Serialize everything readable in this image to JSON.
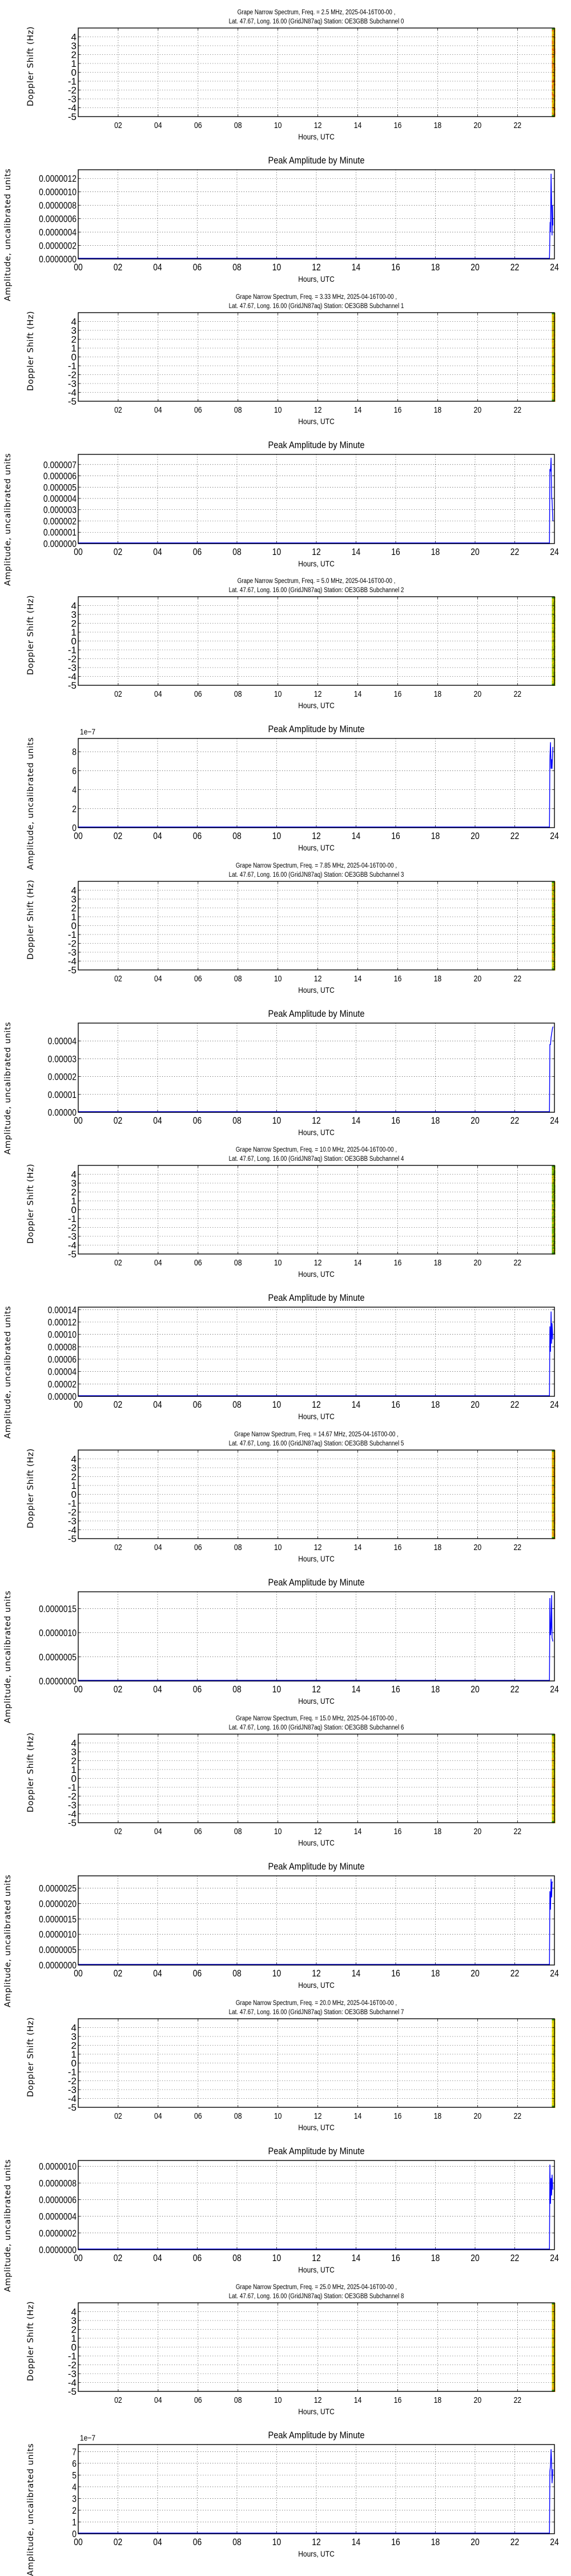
{
  "page": {
    "common": {
      "spectrum_title_prefix": "Grape Narrow Spectrum, Freq. = ",
      "date_suffix": ", 2025-04-16T00-00 ,",
      "location_prefix": "Lat.  47.67, Long.  16.00 (GridJN87aq) Station: OE3GBB Subchannel ",
      "doppler_ylabel": "Doppler Shift (Hz)",
      "amp_title": "Peak Amplitude by Minute",
      "amp_ylabel": "Amplitude, uncalibrated units",
      "xlabel": "Hours, UTC",
      "spectrum_xticks": [
        "02",
        "04",
        "06",
        "08",
        "10",
        "12",
        "14",
        "16",
        "18",
        "20",
        "22"
      ],
      "amp_xticks": [
        "00",
        "02",
        "04",
        "06",
        "08",
        "10",
        "12",
        "14",
        "16",
        "18",
        "20",
        "22",
        "24"
      ],
      "doppler_yticks": [
        "4",
        "3",
        "2",
        "1",
        "0",
        "-1",
        "-2",
        "-3",
        "-4",
        "-5"
      ],
      "line_color": "#0000ff",
      "grid_color": "#000000"
    },
    "blocks": [
      {
        "subchannel": "0",
        "freq": "2.5 MHz",
        "spectrum_title_line1": "Grape Narrow Spectrum, Freq. = 2.5 MHz, 2025-04-16T00-00 ,",
        "spectrum_title_line2": "Lat.  47.67, Long.  16.00 (GridJN87aq) Station: OE3GBB Subchannel 0",
        "band_palette": [
          "#e8c400",
          "#f0a000",
          "#e86000",
          "#d8d000"
        ],
        "amp_offset_text": "",
        "amp_yticks": [
          "0.0000012",
          "0.0000010",
          "0.0000008",
          "0.0000006",
          "0.0000004",
          "0.0000002",
          "0.0000000"
        ]
      },
      {
        "subchannel": "1",
        "freq": "3.33 MHz",
        "spectrum_title_line1": "Grape Narrow Spectrum, Freq. = 3.33 MHz, 2025-04-16T00-00 ,",
        "spectrum_title_line2": "Lat.  47.67, Long.  16.00 (GridJN87aq) Station: OE3GBB Subchannel 1",
        "band_palette": [
          "#c8d000",
          "#e0a000",
          "#b8c800",
          "#e8c800"
        ],
        "amp_offset_text": "",
        "amp_yticks": [
          "0.000007",
          "0.000006",
          "0.000005",
          "0.000004",
          "0.000003",
          "0.000002",
          "0.000001",
          "0.000000"
        ]
      },
      {
        "subchannel": "2",
        "freq": "5.0 MHz",
        "spectrum_title_line1": "Grape Narrow Spectrum, Freq. = 5.0 MHz, 2025-04-16T00-00 ,",
        "spectrum_title_line2": "Lat.  47.67, Long.  16.00 (GridJN87aq) Station: OE3GBB Subchannel 2",
        "band_palette": [
          "#a8c800",
          "#c8d400",
          "#e0d000",
          "#90b800"
        ],
        "amp_offset_text": "1e−7",
        "amp_yticks": [
          "8",
          "6",
          "4",
          "2",
          "0"
        ]
      },
      {
        "subchannel": "3",
        "freq": "7.85 MHz",
        "spectrum_title_line1": "Grape Narrow Spectrum, Freq. = 7.85 MHz, 2025-04-16T00-00 ,",
        "spectrum_title_line2": "Lat.  47.67, Long.  16.00 (GridJN87aq) Station: OE3GBB Subchannel 3",
        "band_palette": [
          "#88b800",
          "#a8c800",
          "#e8a000",
          "#d8d000"
        ],
        "amp_offset_text": "",
        "amp_yticks": [
          "0.00004",
          "0.00003",
          "0.00002",
          "0.00001",
          "0.00000"
        ]
      },
      {
        "subchannel": "4",
        "freq": "10.0 MHz",
        "spectrum_title_line1": "Grape Narrow Spectrum, Freq. = 10.0 MHz, 2025-04-16T00-00 ,",
        "spectrum_title_line2": "Lat.  47.67, Long.  16.00 (GridJN87aq) Station: OE3GBB Subchannel 4",
        "band_palette": [
          "#60a800",
          "#78b400",
          "#90c000",
          "#e0c000"
        ],
        "amp_offset_text": "",
        "amp_yticks": [
          "0.00014",
          "0.00012",
          "0.00010",
          "0.00008",
          "0.00006",
          "0.00004",
          "0.00002",
          "0.00000"
        ]
      },
      {
        "subchannel": "5",
        "freq": "14.67 MHz",
        "spectrum_title_line1": "Grape Narrow Spectrum, Freq. = 14.67 MHz, 2025-04-16T00-00 ,",
        "spectrum_title_line2": "Lat.  47.67, Long.  16.00 (GridJN87aq) Station: OE3GBB Subchannel 5",
        "band_palette": [
          "#e8c800",
          "#f0b000",
          "#c8d000",
          "#e89000"
        ],
        "amp_offset_text": "",
        "amp_yticks": [
          "0.0000015",
          "0.0000010",
          "0.0000005",
          "0.0000000"
        ]
      },
      {
        "subchannel": "6",
        "freq": "15.0 MHz",
        "spectrum_title_line1": "Grape Narrow Spectrum, Freq. = 15.0 MHz, 2025-04-16T00-00 ,",
        "spectrum_title_line2": "Lat.  47.67, Long.  16.00 (GridJN87aq) Station: OE3GBB Subchannel 6",
        "band_palette": [
          "#d0d400",
          "#b8c800",
          "#e8d000",
          "#e8a000"
        ],
        "amp_offset_text": "",
        "amp_yticks": [
          "0.0000025",
          "0.0000020",
          "0.0000015",
          "0.0000010",
          "0.0000005",
          "0.0000000"
        ]
      },
      {
        "subchannel": "7",
        "freq": "20.0 MHz",
        "spectrum_title_line1": "Grape Narrow Spectrum, Freq. = 20.0 MHz, 2025-04-16T00-00 ,",
        "spectrum_title_line2": "Lat.  47.67, Long.  16.00 (GridJN87aq) Station: OE3GBB Subchannel 7",
        "band_palette": [
          "#e8d800",
          "#d8d000",
          "#c8c800",
          "#f0e000"
        ],
        "amp_offset_text": "",
        "amp_yticks": [
          "0.0000010",
          "0.0000008",
          "0.0000006",
          "0.0000004",
          "0.0000002",
          "0.0000000"
        ]
      },
      {
        "subchannel": "8",
        "freq": "25.0 MHz",
        "spectrum_title_line1": "Grape Narrow Spectrum, Freq. = 25.0 MHz, 2025-04-16T00-00 ,",
        "spectrum_title_line2": "Lat.  47.67, Long.  16.00 (GridJN87aq) Station: OE3GBB Subchannel 8",
        "band_palette": [
          "#e8c800",
          "#d8d000",
          "#f0a800",
          "#c0c800"
        ],
        "amp_offset_text": "1e−7",
        "amp_yticks": [
          "7",
          "6",
          "5",
          "4",
          "3",
          "2",
          "1",
          "0"
        ]
      }
    ]
  },
  "chart_data": [
    {
      "type": "heatmap",
      "title": "Grape Narrow Spectrum, Freq. = 2.5 MHz, 2025-04-16T00-00 , Lat.  47.67, Long.  16.00 (GridJN87aq) Station: OE3GBB Subchannel 0",
      "xlabel": "Hours, UTC",
      "ylabel": "Doppler Shift (Hz)",
      "xlim": [
        0,
        23.85
      ],
      "ylim": [
        -5,
        5
      ],
      "xticks": [
        "02",
        "04",
        "06",
        "08",
        "10",
        "12",
        "14",
        "16",
        "18",
        "20",
        "22"
      ],
      "yticks": [
        4,
        3,
        2,
        1,
        0,
        -1,
        -2,
        -3,
        -4,
        -5
      ],
      "grid": true,
      "note": "data only in last ~10 minutes (23.75-23.85 h), yellow/orange/red noise",
      "data_x_range": [
        23.75,
        23.85
      ]
    },
    {
      "type": "line",
      "title": "Peak Amplitude by Minute",
      "subchannel": 0,
      "xlabel": "Hours, UTC",
      "ylabel": "Amplitude, uncalibrated units",
      "xlim": [
        0,
        24
      ],
      "ylim": [
        0,
        1.33e-06
      ],
      "grid": true,
      "x": [
        0,
        23.75,
        23.78,
        23.8,
        23.83,
        23.86,
        23.88,
        23.9,
        23.92
      ],
      "values": [
        0,
        0,
        5.5e-07,
        4e-07,
        1.27e-06,
        8e-07,
        3.5e-07,
        8e-07,
        5e-07
      ]
    },
    {
      "type": "heatmap",
      "title": "Grape Narrow Spectrum, Freq. = 3.33 MHz, 2025-04-16T00-00 , Lat.  47.67, Long.  16.00 (GridJN87aq) Station: OE3GBB Subchannel 1",
      "xlabel": "Hours, UTC",
      "ylabel": "Doppler Shift (Hz)",
      "xlim": [
        0,
        23.85
      ],
      "ylim": [
        -5,
        5
      ],
      "grid": true,
      "data_x_range": [
        23.75,
        23.85
      ]
    },
    {
      "type": "line",
      "title": "Peak Amplitude by Minute",
      "subchannel": 1,
      "xlabel": "Hours, UTC",
      "ylabel": "Amplitude, uncalibrated units",
      "xlim": [
        0,
        24
      ],
      "ylim": [
        0,
        7.9e-06
      ],
      "grid": true,
      "x": [
        0,
        23.75,
        23.77,
        23.8,
        23.83,
        23.86,
        23.88,
        23.92
      ],
      "values": [
        0,
        0,
        6.6e-06,
        6.4e-06,
        7.6e-06,
        4e-06,
        3.9e-06,
        2e-06
      ]
    },
    {
      "type": "heatmap",
      "title": "Grape Narrow Spectrum, Freq. = 5.0 MHz, 2025-04-16T00-00 , Lat.  47.67, Long.  16.00 (GridJN87aq) Station: OE3GBB Subchannel 2",
      "xlabel": "Hours, UTC",
      "ylabel": "Doppler Shift (Hz)",
      "xlim": [
        0,
        23.85
      ],
      "ylim": [
        -5,
        5
      ],
      "grid": true,
      "data_x_range": [
        23.75,
        23.85
      ]
    },
    {
      "type": "line",
      "title": "Peak Amplitude by Minute",
      "subchannel": 2,
      "xlabel": "Hours, UTC",
      "ylabel": "Amplitude, uncalibrated units",
      "y_offset_label": "1e-7",
      "xlim": [
        0,
        24
      ],
      "ylim": [
        0,
        9.4e-07
      ],
      "grid": true,
      "x": [
        0,
        23.75,
        23.77,
        23.8,
        23.83,
        23.86,
        23.88,
        23.92
      ],
      "values": [
        0,
        0,
        7.2e-07,
        9e-07,
        6.2e-07,
        7.2e-07,
        6.2e-07,
        8.5e-07
      ]
    },
    {
      "type": "heatmap",
      "title": "Grape Narrow Spectrum, Freq. = 7.85 MHz, 2025-04-16T00-00 , Lat.  47.67, Long.  16.00 (GridJN87aq) Station: OE3GBB Subchannel 3",
      "xlabel": "Hours, UTC",
      "ylabel": "Doppler Shift (Hz)",
      "xlim": [
        0,
        23.85
      ],
      "ylim": [
        -5,
        5
      ],
      "grid": true,
      "data_x_range": [
        23.75,
        23.85
      ]
    },
    {
      "type": "line",
      "title": "Peak Amplitude by Minute",
      "subchannel": 3,
      "xlabel": "Hours, UTC",
      "ylabel": "Amplitude, uncalibrated units",
      "xlim": [
        0,
        24
      ],
      "ylim": [
        0,
        5e-05
      ],
      "grid": true,
      "x": [
        0,
        23.75,
        23.77,
        23.8,
        23.83,
        23.86,
        23.9,
        23.93
      ],
      "values": [
        0,
        0,
        3.8e-05,
        3.8e-05,
        4.2e-05,
        4.4e-05,
        4.7e-05,
        4.8e-05
      ]
    },
    {
      "type": "heatmap",
      "title": "Grape Narrow Spectrum, Freq. = 10.0 MHz, 2025-04-16T00-00 , Lat.  47.67, Long.  16.00 (GridJN87aq) Station: OE3GBB Subchannel 4",
      "xlabel": "Hours, UTC",
      "ylabel": "Doppler Shift (Hz)",
      "xlim": [
        0,
        23.85
      ],
      "ylim": [
        -5,
        5
      ],
      "grid": true,
      "data_x_range": [
        23.75,
        23.85
      ]
    },
    {
      "type": "line",
      "title": "Peak Amplitude by Minute",
      "subchannel": 4,
      "xlabel": "Hours, UTC",
      "ylabel": "Amplitude, uncalibrated units",
      "xlim": [
        0,
        24
      ],
      "ylim": [
        0,
        0.000144
      ],
      "grid": true,
      "x": [
        0,
        23.75,
        23.77,
        23.8,
        23.83,
        23.86,
        23.88,
        23.92
      ],
      "values": [
        0,
        0,
        0.000113,
        7.2e-05,
        0.000137,
        8.5e-05,
        0.000118,
        9.2e-05
      ]
    },
    {
      "type": "heatmap",
      "title": "Grape Narrow Spectrum, Freq. = 14.67 MHz, 2025-04-16T00-00 , Lat.  47.67, Long.  16.00 (GridJN87aq) Station: OE3GBB Subchannel 5",
      "xlabel": "Hours, UTC",
      "ylabel": "Doppler Shift (Hz)",
      "xlim": [
        0,
        23.85
      ],
      "ylim": [
        -5,
        5
      ],
      "grid": true,
      "data_x_range": [
        23.75,
        23.85
      ]
    },
    {
      "type": "line",
      "title": "Peak Amplitude by Minute",
      "subchannel": 5,
      "xlabel": "Hours, UTC",
      "ylabel": "Amplitude, uncalibrated units",
      "xlim": [
        0,
        24
      ],
      "ylim": [
        0,
        1.85e-06
      ],
      "grid": true,
      "x": [
        0,
        23.75,
        23.77,
        23.8,
        23.83,
        23.86,
        23.88,
        23.92
      ],
      "values": [
        0,
        0,
        1.72e-06,
        9.5e-07,
        1.1e-06,
        1.78e-06,
        9e-07,
        8.2e-07
      ]
    },
    {
      "type": "heatmap",
      "title": "Grape Narrow Spectrum, Freq. = 15.0 MHz, 2025-04-16T00-00 , Lat.  47.67, Long.  16.00 (GridJN87aq) Station: OE3GBB Subchannel 6",
      "xlabel": "Hours, UTC",
      "ylabel": "Doppler Shift (Hz)",
      "xlim": [
        0,
        23.85
      ],
      "ylim": [
        -5,
        5
      ],
      "grid": true,
      "data_x_range": [
        23.75,
        23.85
      ]
    },
    {
      "type": "line",
      "title": "Peak Amplitude by Minute",
      "subchannel": 6,
      "xlabel": "Hours, UTC",
      "ylabel": "Amplitude, uncalibrated units",
      "xlim": [
        0,
        24
      ],
      "ylim": [
        0,
        2.9e-06
      ],
      "grid": true,
      "x": [
        0,
        23.75,
        23.77,
        23.8,
        23.83,
        23.86,
        23.88,
        23.92
      ],
      "values": [
        0,
        0,
        2.4e-06,
        1.8e-06,
        2.8e-06,
        2.2e-06,
        2.7e-06,
        2.7e-06
      ]
    },
    {
      "type": "heatmap",
      "title": "Grape Narrow Spectrum, Freq. = 20.0 MHz, 2025-04-16T00-00 , Lat.  47.67, Long.  16.00 (GridJN87aq) Station: OE3GBB Subchannel 7",
      "xlabel": "Hours, UTC",
      "ylabel": "Doppler Shift (Hz)",
      "xlim": [
        0,
        23.85
      ],
      "ylim": [
        -5,
        5
      ],
      "grid": true,
      "data_x_range": [
        23.75,
        23.85
      ]
    },
    {
      "type": "line",
      "title": "Peak Amplitude by Minute",
      "subchannel": 7,
      "xlabel": "Hours, UTC",
      "ylabel": "Amplitude, uncalibrated units",
      "xlim": [
        0,
        24
      ],
      "ylim": [
        0,
        1.07e-06
      ],
      "grid": true,
      "x": [
        0,
        23.75,
        23.77,
        23.8,
        23.83,
        23.86,
        23.88,
        23.92
      ],
      "values": [
        0,
        0,
        1.02e-06,
        5.5e-07,
        8.6e-07,
        6.5e-07,
        9e-07,
        7.2e-07
      ]
    },
    {
      "type": "heatmap",
      "title": "Grape Narrow Spectrum, Freq. = 25.0 MHz, 2025-04-16T00-00 , Lat.  47.67, Long.  16.00 (GridJN87aq) Station: OE3GBB Subchannel 8",
      "xlabel": "Hours, UTC",
      "ylabel": "Doppler Shift (Hz)",
      "xlim": [
        0,
        23.85
      ],
      "ylim": [
        -5,
        5
      ],
      "grid": true,
      "data_x_range": [
        23.75,
        23.85
      ]
    },
    {
      "type": "line",
      "title": "Peak Amplitude by Minute",
      "subchannel": 8,
      "xlabel": "Hours, UTC",
      "ylabel": "Amplitude, uncalibrated units",
      "y_offset_label": "1e-7",
      "xlim": [
        0,
        24
      ],
      "ylim": [
        0,
        7.6e-07
      ],
      "grid": true,
      "x": [
        0,
        23.75,
        23.77,
        23.8,
        23.83,
        23.86,
        23.88,
        23.92
      ],
      "values": [
        0,
        0,
        5.3e-07,
        5.8e-07,
        7.2e-07,
        6e-07,
        4.3e-07,
        5.5e-07
      ]
    }
  ]
}
